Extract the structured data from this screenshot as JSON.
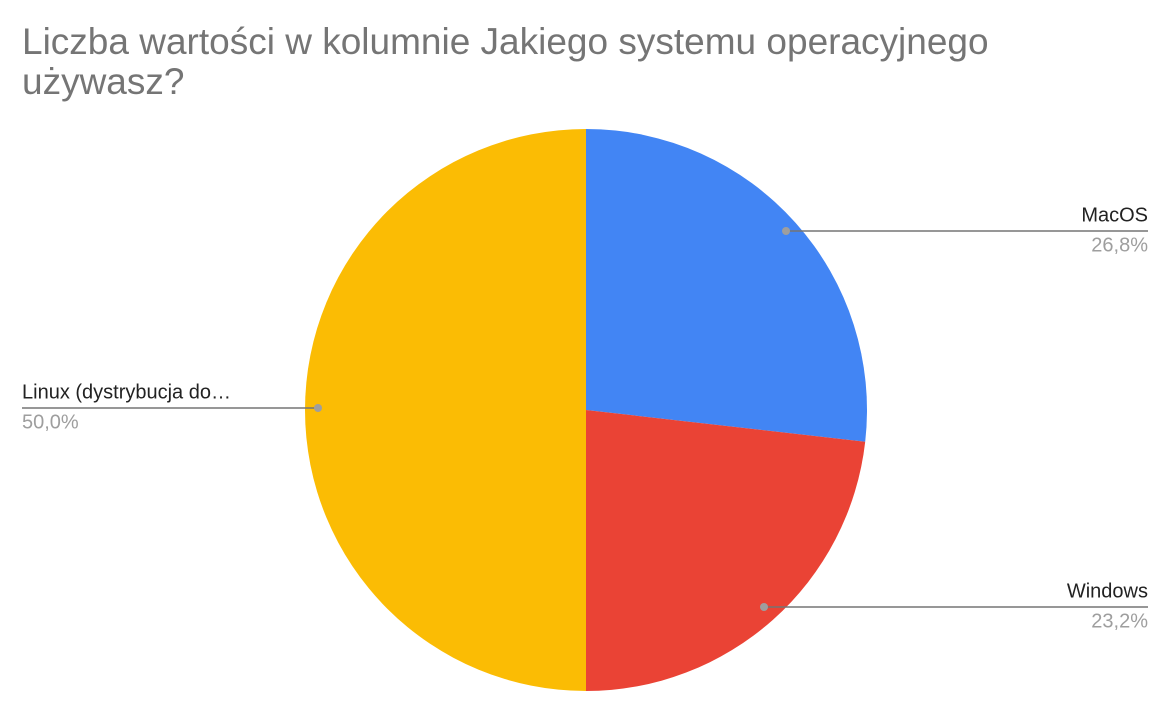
{
  "chart_data": {
    "type": "pie",
    "title": "Liczba wartości w kolumnie Jakiego systemu operacyjnego używasz?",
    "categories": [
      "MacOS",
      "Windows",
      "Linux (dystrybucja do…"
    ],
    "values": [
      26.8,
      23.2,
      50.0
    ],
    "value_labels": [
      "26,8%",
      "23,2%",
      "50,0%"
    ],
    "colors": [
      "#4285f4",
      "#ea4335",
      "#fbbc04"
    ]
  }
}
